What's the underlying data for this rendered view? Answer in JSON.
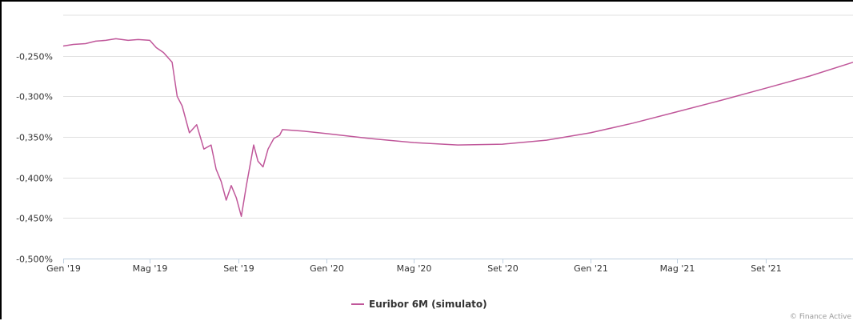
{
  "chart_data": {
    "type": "line",
    "title": "",
    "xlabel": "",
    "ylabel": "",
    "x_range": [
      "2019-01-01",
      "2021-12-31"
    ],
    "ylim": [
      -0.5,
      -0.2
    ],
    "y_ticks": [
      -0.25,
      -0.3,
      -0.35,
      -0.4,
      -0.45,
      -0.5
    ],
    "y_tick_labels": [
      "-0,250%",
      "-0,300%",
      "-0,350%",
      "-0,400%",
      "-0,450%",
      "-0,500%"
    ],
    "x_ticks": [
      "2019-01-01",
      "2019-05-01",
      "2019-09-01",
      "2020-01-01",
      "2020-05-01",
      "2020-09-01",
      "2021-01-01",
      "2021-05-01",
      "2021-09-01"
    ],
    "x_tick_labels": [
      "Gen '19",
      "Mag '19",
      "Set '19",
      "Gen '20",
      "Mag '20",
      "Set '20",
      "Gen '21",
      "Mag '21",
      "Set '21"
    ],
    "grid": true,
    "legend_position": "bottom",
    "colors": {
      "series": "#c0579a",
      "grid": "#e0e0e0",
      "axis": "#c0d0e0"
    },
    "series": [
      {
        "name": "Euribor 6M (simulato)",
        "points": [
          [
            "2019-01-01",
            -0.238
          ],
          [
            "2019-01-15",
            -0.236
          ],
          [
            "2019-02-01",
            -0.235
          ],
          [
            "2019-02-15",
            -0.232
          ],
          [
            "2019-03-01",
            -0.231
          ],
          [
            "2019-03-15",
            -0.229
          ],
          [
            "2019-04-01",
            -0.231
          ],
          [
            "2019-04-15",
            -0.23
          ],
          [
            "2019-05-01",
            -0.231
          ],
          [
            "2019-05-10",
            -0.24
          ],
          [
            "2019-05-20",
            -0.246
          ],
          [
            "2019-06-01",
            -0.258
          ],
          [
            "2019-06-08",
            -0.3
          ],
          [
            "2019-06-15",
            -0.312
          ],
          [
            "2019-06-25",
            -0.345
          ],
          [
            "2019-07-05",
            -0.335
          ],
          [
            "2019-07-15",
            -0.365
          ],
          [
            "2019-07-25",
            -0.36
          ],
          [
            "2019-08-01",
            -0.39
          ],
          [
            "2019-08-08",
            -0.405
          ],
          [
            "2019-08-15",
            -0.428
          ],
          [
            "2019-08-22",
            -0.41
          ],
          [
            "2019-08-29",
            -0.425
          ],
          [
            "2019-09-05",
            -0.448
          ],
          [
            "2019-09-12",
            -0.41
          ],
          [
            "2019-09-18",
            -0.38
          ],
          [
            "2019-09-22",
            -0.36
          ],
          [
            "2019-09-28",
            -0.38
          ],
          [
            "2019-10-05",
            -0.387
          ],
          [
            "2019-10-12",
            -0.365
          ],
          [
            "2019-10-20",
            -0.352
          ],
          [
            "2019-10-28",
            -0.348
          ],
          [
            "2019-11-01",
            -0.341
          ],
          [
            "2019-12-01",
            -0.343
          ],
          [
            "2020-01-01",
            -0.346
          ],
          [
            "2020-03-01",
            -0.352
          ],
          [
            "2020-05-01",
            -0.357
          ],
          [
            "2020-07-01",
            -0.36
          ],
          [
            "2020-09-01",
            -0.359
          ],
          [
            "2020-11-01",
            -0.354
          ],
          [
            "2021-01-01",
            -0.345
          ],
          [
            "2021-03-01",
            -0.333
          ],
          [
            "2021-05-01",
            -0.319
          ],
          [
            "2021-07-01",
            -0.305
          ],
          [
            "2021-09-01",
            -0.29
          ],
          [
            "2021-11-01",
            -0.275
          ],
          [
            "2021-12-31",
            -0.258
          ]
        ]
      }
    ]
  },
  "credit": "© Finance Active"
}
